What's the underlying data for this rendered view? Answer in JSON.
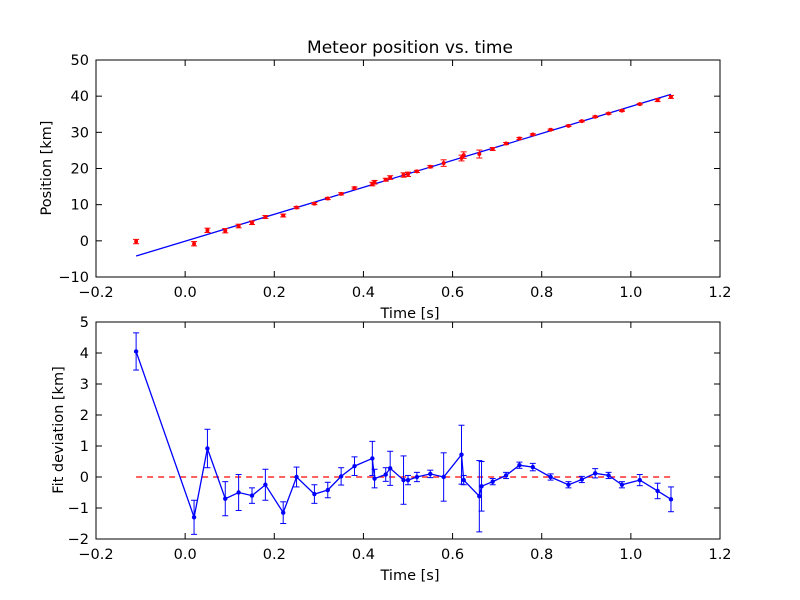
{
  "chart_data": [
    {
      "type": "scatter",
      "title": "Meteor position vs. time",
      "xlabel": "Time [s]",
      "ylabel": "Position [km]",
      "xlim": [
        -0.2,
        1.2
      ],
      "ylim": [
        -10,
        50
      ],
      "xticks": [
        "−0.2",
        "0.0",
        "0.2",
        "0.4",
        "0.6",
        "0.8",
        "1.0",
        "1.2"
      ],
      "yticks": [
        "−10",
        "0",
        "10",
        "20",
        "30",
        "40",
        "50"
      ],
      "grid": false,
      "colors": {
        "points": "#ff0000",
        "fit": "#0000ff"
      },
      "series": [
        {
          "kind": "errorbar-points",
          "x": [
            -0.11,
            0.02,
            0.05,
            0.09,
            0.12,
            0.15,
            0.18,
            0.22,
            0.25,
            0.29,
            0.32,
            0.35,
            0.38,
            0.42,
            0.425,
            0.45,
            0.46,
            0.49,
            0.5,
            0.52,
            0.55,
            0.58,
            0.62,
            0.625,
            0.66,
            0.69,
            0.72,
            0.75,
            0.78,
            0.82,
            0.86,
            0.89,
            0.92,
            0.95,
            0.98,
            1.02,
            1.06,
            1.09
          ],
          "y": [
            -0.2,
            -0.8,
            2.9,
            2.8,
            4.1,
            5.0,
            6.6,
            7.0,
            9.2,
            10.3,
            11.7,
            13.0,
            14.6,
            15.7,
            16.2,
            16.9,
            17.5,
            18.2,
            18.4,
            19.2,
            20.5,
            21.5,
            22.9,
            23.7,
            24.0,
            25.4,
            26.9,
            28.3,
            29.4,
            30.7,
            31.8,
            33.1,
            34.3,
            35.2,
            36.0,
            37.8,
            38.9,
            39.8
          ],
          "yerr": [
            0.6,
            0.6,
            0.6,
            0.6,
            0.5,
            0.5,
            0.4,
            0.4,
            0.3,
            0.3,
            0.3,
            0.3,
            0.3,
            0.5,
            0.5,
            0.4,
            0.5,
            0.6,
            0.6,
            0.3,
            0.3,
            0.9,
            0.8,
            0.9,
            1.1,
            0.4,
            0.3,
            0.3,
            0.2,
            0.2,
            0.2,
            0.2,
            0.2,
            0.2,
            0.2,
            0.2,
            0.4,
            0.4
          ]
        },
        {
          "kind": "line",
          "x": [
            -0.11,
            1.09
          ],
          "y": [
            -4.2,
            40.5
          ]
        }
      ]
    },
    {
      "type": "line",
      "title": "",
      "xlabel": "Time [s]",
      "ylabel": "Fit deviation [km]",
      "xlim": [
        -0.2,
        1.2
      ],
      "ylim": [
        -2,
        5
      ],
      "xticks": [
        "−0.2",
        "0.0",
        "0.2",
        "0.4",
        "0.6",
        "0.8",
        "1.0",
        "1.2"
      ],
      "yticks": [
        "−2",
        "−1",
        "0",
        "1",
        "2",
        "3",
        "4",
        "5"
      ],
      "grid": false,
      "colors": {
        "line": "#0000ff",
        "zero": "#ff0000"
      },
      "reference_line": {
        "y": 0,
        "style": "dashed",
        "x": [
          -0.11,
          1.09
        ]
      },
      "series": [
        {
          "kind": "errorbar-line",
          "x": [
            -0.11,
            0.02,
            0.05,
            0.09,
            0.12,
            0.15,
            0.18,
            0.22,
            0.25,
            0.29,
            0.32,
            0.35,
            0.38,
            0.42,
            0.425,
            0.45,
            0.46,
            0.49,
            0.5,
            0.52,
            0.55,
            0.58,
            0.62,
            0.625,
            0.66,
            0.665,
            0.69,
            0.72,
            0.75,
            0.78,
            0.82,
            0.86,
            0.89,
            0.92,
            0.95,
            0.98,
            1.02,
            1.06,
            1.09
          ],
          "y": [
            4.05,
            -1.3,
            0.92,
            -0.7,
            -0.5,
            -0.6,
            -0.25,
            -1.15,
            0.0,
            -0.55,
            -0.42,
            0.02,
            0.35,
            0.6,
            -0.05,
            0.08,
            0.28,
            -0.1,
            -0.1,
            0.0,
            0.1,
            0.0,
            0.72,
            -0.1,
            -0.62,
            -0.3,
            -0.15,
            0.05,
            0.38,
            0.32,
            0.0,
            -0.25,
            -0.08,
            0.12,
            0.05,
            -0.25,
            -0.1,
            -0.45,
            -0.72
          ],
          "yerr": [
            0.6,
            0.55,
            0.62,
            0.55,
            0.58,
            0.25,
            0.5,
            0.35,
            0.32,
            0.3,
            0.25,
            0.28,
            0.3,
            0.55,
            0.3,
            0.22,
            0.55,
            0.78,
            0.15,
            0.15,
            0.12,
            0.78,
            0.95,
            0.15,
            1.15,
            0.8,
            0.1,
            0.1,
            0.1,
            0.12,
            0.1,
            0.1,
            0.1,
            0.15,
            0.1,
            0.1,
            0.18,
            0.25,
            0.4
          ]
        }
      ]
    }
  ]
}
